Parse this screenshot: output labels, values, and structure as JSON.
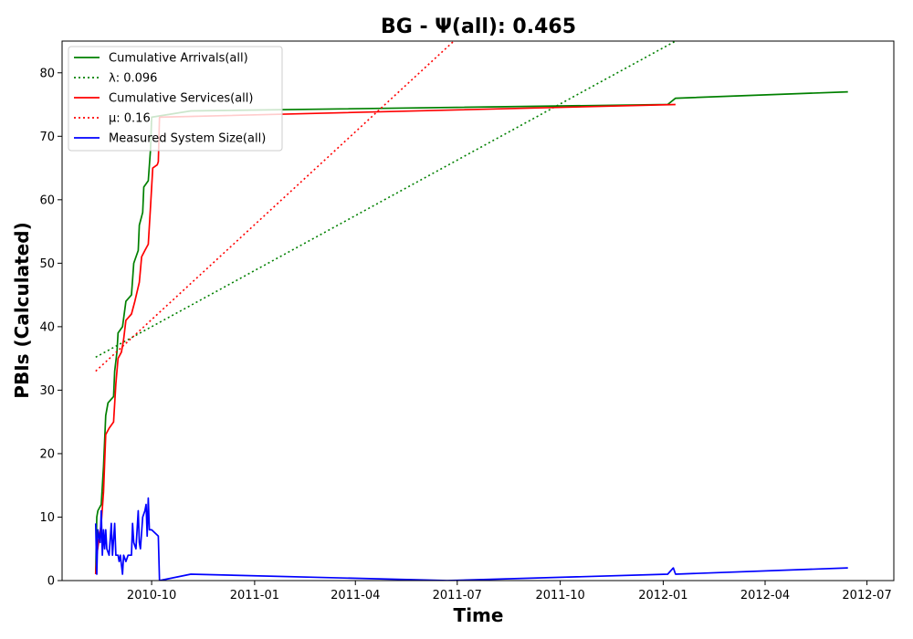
{
  "chart_data": {
    "type": "line",
    "title": "BG -  Ψ(all): 0.465",
    "xlabel": "Time",
    "ylabel": "PBIs (Calculated)",
    "xlim": [
      "2010-07-13",
      "2012-07-25"
    ],
    "ylim": [
      0,
      85
    ],
    "x_ticks": [
      "2010-10",
      "2011-01",
      "2011-04",
      "2011-07",
      "2011-10",
      "2012-01",
      "2012-04",
      "2012-07"
    ],
    "y_ticks": [
      0,
      10,
      20,
      30,
      40,
      50,
      60,
      70,
      80
    ],
    "grid": false,
    "legend_position": "top-left",
    "series": [
      {
        "name": "Cumulative Arrivals(all)",
        "style": "solid",
        "color": "#008000",
        "points": [
          [
            "2010-08-12",
            1
          ],
          [
            "2010-08-13",
            10
          ],
          [
            "2010-08-14",
            11
          ],
          [
            "2010-08-17",
            12
          ],
          [
            "2010-08-19",
            18
          ],
          [
            "2010-08-20",
            22
          ],
          [
            "2010-08-21",
            26
          ],
          [
            "2010-08-23",
            28
          ],
          [
            "2010-08-28",
            29
          ],
          [
            "2010-08-29",
            33
          ],
          [
            "2010-08-31",
            36
          ],
          [
            "2010-09-01",
            39
          ],
          [
            "2010-09-05",
            40
          ],
          [
            "2010-09-08",
            44
          ],
          [
            "2010-09-13",
            45
          ],
          [
            "2010-09-15",
            50
          ],
          [
            "2010-09-19",
            52
          ],
          [
            "2010-09-20",
            56
          ],
          [
            "2010-09-23",
            58
          ],
          [
            "2010-09-24",
            62
          ],
          [
            "2010-09-28",
            63
          ],
          [
            "2010-09-30",
            68
          ],
          [
            "2010-10-01",
            73
          ],
          [
            "2010-11-05",
            74
          ],
          [
            "2012-01-05",
            75
          ],
          [
            "2012-01-12",
            76
          ],
          [
            "2012-06-14",
            77
          ]
        ]
      },
      {
        "name": "λ: 0.096",
        "style": "dotted",
        "color": "#008000",
        "points": [
          [
            "2010-08-12",
            35.2
          ],
          [
            "2012-01-12",
            85
          ]
        ]
      },
      {
        "name": "Cumulative Services(all)",
        "style": "solid",
        "color": "#ff0000",
        "points": [
          [
            "2010-08-12",
            1
          ],
          [
            "2010-08-13",
            4
          ],
          [
            "2010-08-17",
            9
          ],
          [
            "2010-08-19",
            14
          ],
          [
            "2010-08-21",
            23
          ],
          [
            "2010-08-24",
            24
          ],
          [
            "2010-08-28",
            25
          ],
          [
            "2010-08-30",
            31
          ],
          [
            "2010-09-01",
            35
          ],
          [
            "2010-09-04",
            36
          ],
          [
            "2010-09-06",
            38
          ],
          [
            "2010-09-08",
            41
          ],
          [
            "2010-09-13",
            42
          ],
          [
            "2010-09-16",
            44
          ],
          [
            "2010-09-20",
            47
          ],
          [
            "2010-09-22",
            51
          ],
          [
            "2010-09-25",
            52
          ],
          [
            "2010-09-28",
            53
          ],
          [
            "2010-09-30",
            59
          ],
          [
            "2010-10-02",
            65
          ],
          [
            "2010-10-06",
            65.5
          ],
          [
            "2010-10-07",
            66
          ],
          [
            "2010-10-08",
            73
          ],
          [
            "2012-01-12",
            75
          ]
        ]
      },
      {
        "name": "μ: 0.16",
        "style": "dotted",
        "color": "#ff0000",
        "points": [
          [
            "2010-08-12",
            33
          ],
          [
            "2011-06-28",
            85
          ]
        ]
      },
      {
        "name": "Measured System Size(all)",
        "style": "solid",
        "color": "#0000ff",
        "points": [
          [
            "2010-08-12",
            9
          ],
          [
            "2010-08-13",
            1
          ],
          [
            "2010-08-14",
            8
          ],
          [
            "2010-08-16",
            6
          ],
          [
            "2010-08-17",
            11
          ],
          [
            "2010-08-18",
            4
          ],
          [
            "2010-08-19",
            8
          ],
          [
            "2010-08-20",
            5
          ],
          [
            "2010-08-21",
            8
          ],
          [
            "2010-08-22",
            5
          ],
          [
            "2010-08-24",
            4
          ],
          [
            "2010-08-26",
            9
          ],
          [
            "2010-08-27",
            4
          ],
          [
            "2010-08-29",
            9
          ],
          [
            "2010-08-30",
            4
          ],
          [
            "2010-09-01",
            4
          ],
          [
            "2010-09-02",
            3
          ],
          [
            "2010-09-03",
            4
          ],
          [
            "2010-09-05",
            1
          ],
          [
            "2010-09-06",
            4
          ],
          [
            "2010-09-08",
            3
          ],
          [
            "2010-09-10",
            4
          ],
          [
            "2010-09-13",
            4
          ],
          [
            "2010-09-14",
            9
          ],
          [
            "2010-09-15",
            6
          ],
          [
            "2010-09-17",
            5
          ],
          [
            "2010-09-19",
            11
          ],
          [
            "2010-09-20",
            6
          ],
          [
            "2010-09-21",
            5
          ],
          [
            "2010-09-23",
            10
          ],
          [
            "2010-09-25",
            11
          ],
          [
            "2010-09-26",
            12
          ],
          [
            "2010-09-27",
            7
          ],
          [
            "2010-09-28",
            13
          ],
          [
            "2010-09-29",
            8
          ],
          [
            "2010-10-01",
            8
          ],
          [
            "2010-10-07",
            7
          ],
          [
            "2010-10-08",
            0
          ],
          [
            "2010-11-05",
            1
          ],
          [
            "2011-06-22",
            0
          ],
          [
            "2012-01-05",
            1
          ],
          [
            "2012-01-10",
            2
          ],
          [
            "2012-01-12",
            1
          ],
          [
            "2012-06-14",
            2
          ]
        ]
      }
    ]
  }
}
